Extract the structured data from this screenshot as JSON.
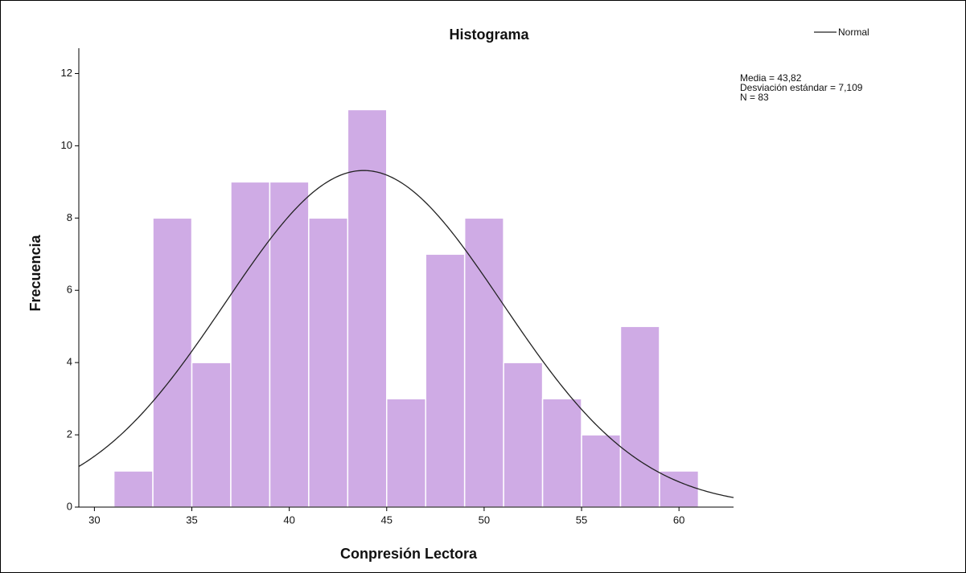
{
  "chart_data": {
    "type": "histogram",
    "title": "Histograma",
    "xlabel": "Conpresión Lectora",
    "ylabel": "Frecuencia",
    "bins": [
      31,
      33,
      35,
      37,
      39,
      41,
      43,
      45,
      47,
      49,
      51,
      53,
      55,
      57,
      59,
      61
    ],
    "values": [
      1,
      8,
      4,
      9,
      9,
      8,
      11,
      3,
      7,
      8,
      4,
      3,
      2,
      5,
      1
    ],
    "color": "#cfabe5",
    "xlim": [
      29.2,
      62.8
    ],
    "xticks": [
      30,
      35,
      40,
      45,
      50,
      55,
      60
    ],
    "ylim": [
      0,
      12.7
    ],
    "yticks": [
      0,
      2,
      4,
      6,
      8,
      10,
      12
    ],
    "legend": {
      "name": "Normal",
      "color": "#222222",
      "position": "top-right"
    },
    "stats": [
      {
        "value": 43.82,
        "label": "Media = 43,82"
      },
      {
        "value": 7.109,
        "label": "Desviación estándar = 7,109"
      },
      {
        "value": 83,
        "label": "N = 83"
      }
    ]
  }
}
